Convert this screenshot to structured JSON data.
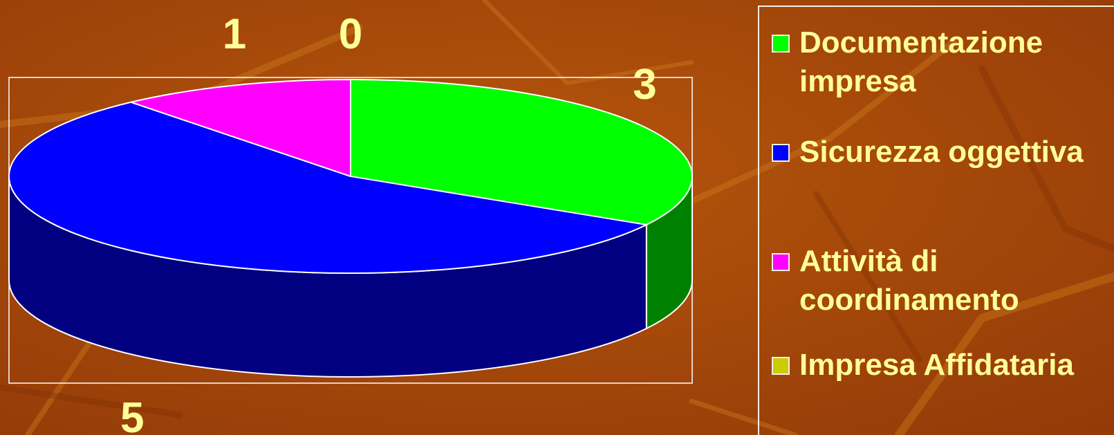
{
  "chart_data": {
    "type": "pie",
    "style": "3d",
    "categories": [
      "Documentazione impresa",
      "Sicurezza oggettiva",
      "Attività di coordinamento",
      "Impresa Affidataria"
    ],
    "values": [
      3,
      5,
      1,
      0
    ],
    "colors": [
      "#00ff00",
      "#0000ff",
      "#ff00ff",
      "#cccc00"
    ],
    "side_colors": [
      "#008000",
      "#000080",
      "#800080",
      "#666600"
    ],
    "legend_placement": "right",
    "data_labels": [
      "3",
      "5",
      "1",
      "0"
    ]
  },
  "legend": {
    "items": [
      {
        "label": "Documentazione\nimpresa",
        "color": "#00ff00"
      },
      {
        "label": "Sicurezza oggettiva",
        "color": "#0000ff"
      },
      {
        "label": "Attività di\ncoordinamento",
        "color": "#ff00ff"
      },
      {
        "label": "Impresa Affidataria",
        "color": "#cccc00"
      }
    ]
  },
  "label_color": "#ffff99"
}
